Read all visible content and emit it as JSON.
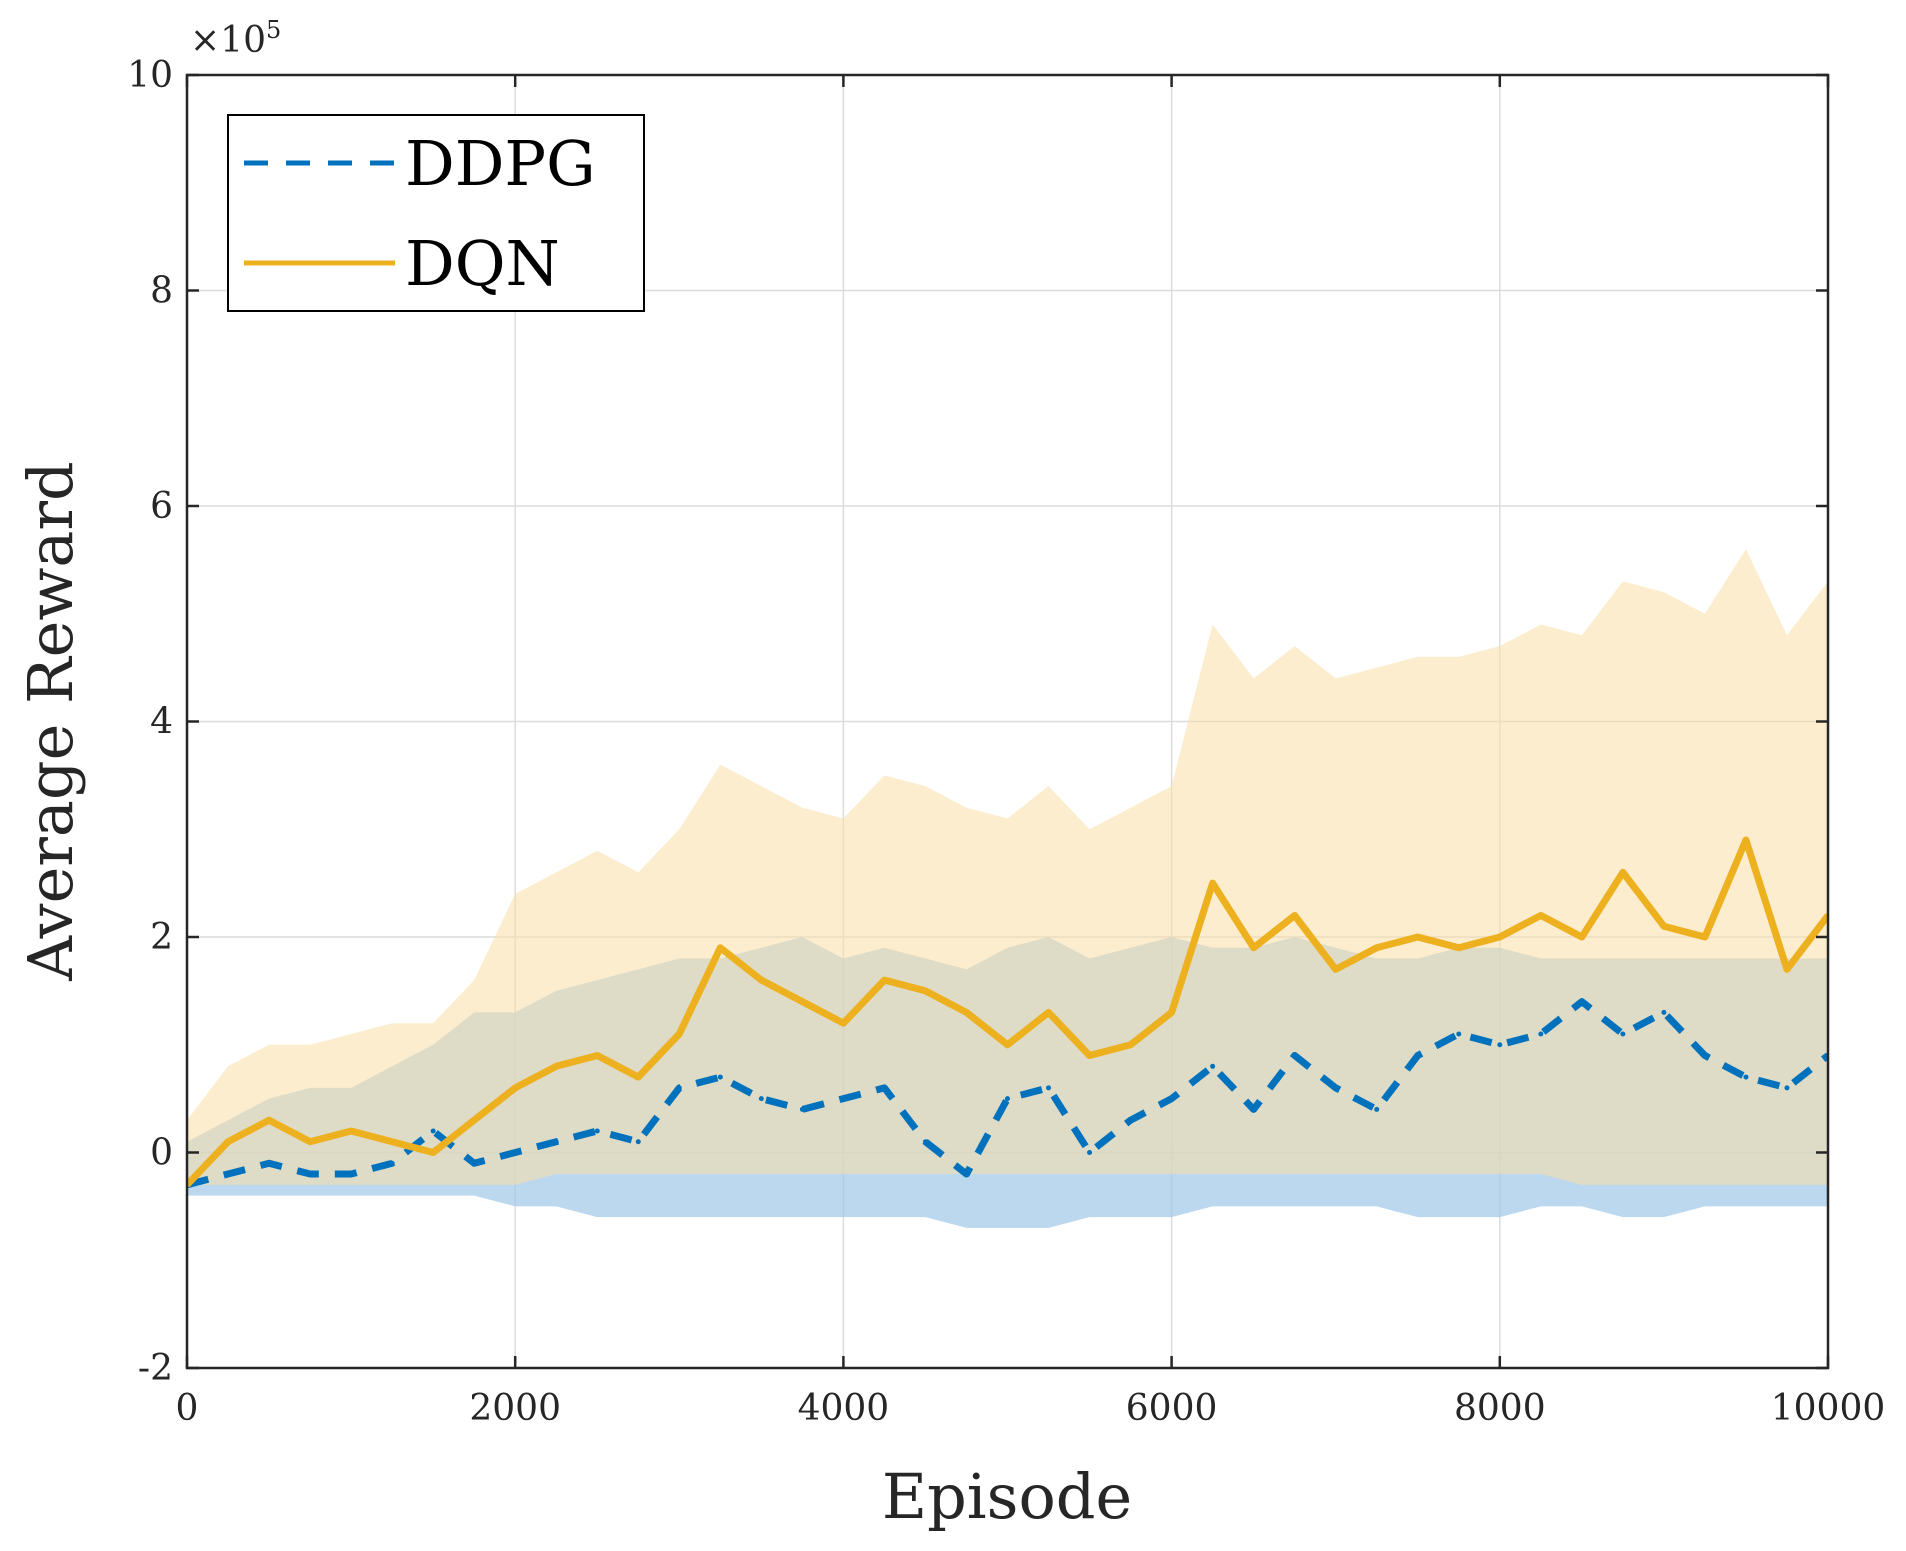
{
  "chart_data": {
    "type": "line",
    "title": "",
    "xlabel": "Episode",
    "ylabel": "Average Reward",
    "y_multiplier": "×10",
    "y_multiplier_exponent": "5",
    "xlim": [
      0,
      10000
    ],
    "ylim": [
      -2,
      10
    ],
    "x_ticks": [
      0,
      2000,
      4000,
      6000,
      8000,
      10000
    ],
    "x_tick_labels": [
      "0",
      "2000",
      "4000",
      "6000",
      "8000",
      "10000"
    ],
    "y_ticks": [
      -2,
      0,
      2,
      4,
      6,
      8,
      10
    ],
    "y_tick_labels": [
      "-2",
      "0",
      "2",
      "4",
      "6",
      "8",
      "10"
    ],
    "grid": true,
    "legend_position": "top-left",
    "x": [
      0,
      250,
      500,
      750,
      1000,
      1250,
      1500,
      1750,
      2000,
      2250,
      2500,
      2750,
      3000,
      3250,
      3500,
      3750,
      4000,
      4250,
      4500,
      4750,
      5000,
      5250,
      5500,
      5750,
      6000,
      6250,
      6500,
      6750,
      7000,
      7250,
      7500,
      7750,
      8000,
      8250,
      8500,
      8750,
      9000,
      9250,
      9500,
      9750,
      10000
    ],
    "series": [
      {
        "name": "DDPG",
        "style": "dashed",
        "color": "#0072BD",
        "band_color": "#9FC8E8",
        "values": [
          -0.3,
          -0.2,
          -0.1,
          -0.2,
          -0.2,
          -0.1,
          0.2,
          -0.1,
          0.0,
          0.1,
          0.2,
          0.1,
          0.6,
          0.7,
          0.5,
          0.4,
          0.5,
          0.6,
          0.1,
          -0.2,
          0.5,
          0.6,
          0.0,
          0.3,
          0.5,
          0.8,
          0.4,
          0.9,
          0.6,
          0.4,
          0.9,
          1.1,
          1.0,
          1.1,
          1.4,
          1.1,
          1.3,
          0.9,
          0.7,
          0.6,
          0.9
        ],
        "band_low": [
          -0.4,
          -0.4,
          -0.4,
          -0.4,
          -0.4,
          -0.4,
          -0.4,
          -0.4,
          -0.5,
          -0.5,
          -0.6,
          -0.6,
          -0.6,
          -0.6,
          -0.6,
          -0.6,
          -0.6,
          -0.6,
          -0.6,
          -0.7,
          -0.7,
          -0.7,
          -0.6,
          -0.6,
          -0.6,
          -0.5,
          -0.5,
          -0.5,
          -0.5,
          -0.5,
          -0.6,
          -0.6,
          -0.6,
          -0.5,
          -0.5,
          -0.6,
          -0.6,
          -0.5,
          -0.5,
          -0.5,
          -0.5
        ],
        "band_high": [
          0.1,
          0.3,
          0.5,
          0.6,
          0.6,
          0.8,
          1.0,
          1.3,
          1.3,
          1.5,
          1.6,
          1.7,
          1.8,
          1.8,
          1.9,
          2.0,
          1.8,
          1.9,
          1.8,
          1.7,
          1.9,
          2.0,
          1.8,
          1.9,
          2.0,
          1.9,
          1.9,
          2.0,
          1.9,
          1.8,
          1.8,
          1.9,
          1.9,
          1.8,
          1.8,
          1.8,
          1.8,
          1.8,
          1.8,
          1.8,
          1.8
        ]
      },
      {
        "name": "DQN",
        "style": "solid",
        "color": "#EDB120",
        "band_color": "#F9DFA5",
        "values": [
          -0.3,
          0.1,
          0.3,
          0.1,
          0.2,
          0.1,
          0.0,
          0.3,
          0.6,
          0.8,
          0.9,
          0.7,
          1.1,
          1.9,
          1.6,
          1.4,
          1.2,
          1.6,
          1.5,
          1.3,
          1.0,
          1.3,
          0.9,
          1.0,
          1.3,
          2.5,
          1.9,
          2.2,
          1.7,
          1.9,
          2.0,
          1.9,
          2.0,
          2.2,
          2.0,
          2.6,
          2.1,
          2.0,
          2.9,
          1.7,
          2.2
        ],
        "band_low": [
          -0.3,
          -0.3,
          -0.3,
          -0.3,
          -0.3,
          -0.3,
          -0.3,
          -0.3,
          -0.3,
          -0.2,
          -0.2,
          -0.2,
          -0.2,
          -0.2,
          -0.2,
          -0.2,
          -0.2,
          -0.2,
          -0.2,
          -0.2,
          -0.2,
          -0.2,
          -0.2,
          -0.2,
          -0.2,
          -0.2,
          -0.2,
          -0.2,
          -0.2,
          -0.2,
          -0.2,
          -0.2,
          -0.2,
          -0.2,
          -0.3,
          -0.3,
          -0.3,
          -0.3,
          -0.3,
          -0.3,
          -0.3
        ],
        "band_high": [
          0.3,
          0.8,
          1.0,
          1.0,
          1.1,
          1.2,
          1.2,
          1.6,
          2.4,
          2.6,
          2.8,
          2.6,
          3.0,
          3.6,
          3.4,
          3.2,
          3.1,
          3.5,
          3.4,
          3.2,
          3.1,
          3.4,
          3.0,
          3.2,
          3.4,
          4.9,
          4.4,
          4.7,
          4.4,
          4.5,
          4.6,
          4.6,
          4.7,
          4.9,
          4.8,
          5.3,
          5.2,
          5.0,
          5.6,
          4.8,
          5.3
        ]
      }
    ]
  }
}
